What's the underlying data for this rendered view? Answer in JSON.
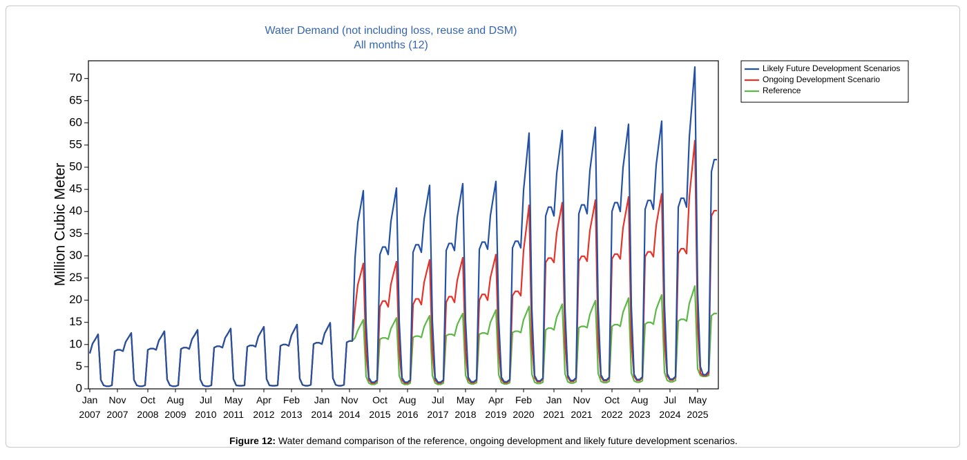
{
  "chart_data": {
    "type": "line",
    "title": "Water Demand (not including loss, reuse and DSM)",
    "subtitle": "All months (12)",
    "y_label": "Million Cubic Meter",
    "caption_label": "Figure 12:",
    "caption": "Water demand comparison of the reference, ongoing development and likely future development scenarios.",
    "legend": "right",
    "grid": false,
    "ylim": [
      0,
      74
    ],
    "yticks": [
      0,
      5,
      10,
      15,
      20,
      25,
      30,
      35,
      40,
      45,
      50,
      55,
      60,
      65,
      70
    ],
    "categories": [
      "Jan 2007",
      null,
      null,
      null,
      null,
      null,
      null,
      null,
      null,
      null,
      "Nov 2007",
      null,
      null,
      null,
      null,
      null,
      null,
      null,
      null,
      null,
      null,
      "Oct 2008",
      null,
      null,
      null,
      null,
      null,
      null,
      null,
      null,
      null,
      "Aug 2009",
      null,
      null,
      null,
      null,
      null,
      null,
      null,
      null,
      null,
      null,
      "Jul 2010",
      null,
      null,
      null,
      null,
      null,
      null,
      null,
      null,
      null,
      "May 2011",
      null,
      null,
      null,
      null,
      null,
      null,
      null,
      null,
      null,
      null,
      "Apr 2012",
      null,
      null,
      null,
      null,
      null,
      null,
      null,
      null,
      null,
      "Feb 2013",
      null,
      null,
      null,
      null,
      null,
      null,
      null,
      null,
      null,
      null,
      "Jan 2014",
      null,
      null,
      null,
      null,
      null,
      null,
      null,
      null,
      null,
      "Nov 2014",
      null,
      null,
      null,
      null,
      null,
      null,
      null,
      null,
      null,
      null,
      "Oct 2015",
      null,
      null,
      null,
      null,
      null,
      null,
      null,
      null,
      null,
      "Aug 2016",
      null,
      null,
      null,
      null,
      null,
      null,
      null,
      null,
      null,
      null,
      "Jul 2017",
      null,
      null,
      null,
      null,
      null,
      null,
      null,
      null,
      null,
      "May 2018",
      null,
      null,
      null,
      null,
      null,
      null,
      null,
      null,
      null,
      null,
      "Apr 2019",
      null,
      null,
      null,
      null,
      null,
      null,
      null,
      null,
      null,
      "Feb 2020",
      null,
      null,
      null,
      null,
      null,
      null,
      null,
      null,
      null,
      null,
      "Jan 2021",
      null,
      null,
      null,
      null,
      null,
      null,
      null,
      null,
      null,
      "Nov 2021",
      null,
      null,
      null,
      null,
      null,
      null,
      null,
      null,
      null,
      null,
      "Oct 2022",
      null,
      null,
      null,
      null,
      null,
      null,
      null,
      null,
      null,
      "Aug 2023",
      null,
      null,
      null,
      null,
      null,
      null,
      null,
      null,
      null,
      null,
      "Jul 2024",
      null,
      null,
      null,
      null,
      null,
      null,
      null,
      null,
      null,
      "May 2025",
      null,
      null,
      null,
      null,
      null,
      null,
      null
    ],
    "series": [
      {
        "name": "Likely Future Development Scenarios",
        "color": "#2351a3",
        "values": [
          8.0,
          10.2,
          11.2,
          12.3,
          2.0,
          0.8,
          0.6,
          0.6,
          0.8,
          8.5,
          8.8,
          8.8,
          8.5,
          10.6,
          11.6,
          12.6,
          2.0,
          0.8,
          0.6,
          0.6,
          0.8,
          8.8,
          9.1,
          9.1,
          8.8,
          10.9,
          11.9,
          13.0,
          2.1,
          0.8,
          0.6,
          0.6,
          0.8,
          9.0,
          9.3,
          9.3,
          9.0,
          11.2,
          12.2,
          13.3,
          2.1,
          0.8,
          0.6,
          0.6,
          0.8,
          9.3,
          9.6,
          9.6,
          9.3,
          11.5,
          12.5,
          13.6,
          2.2,
          0.8,
          0.7,
          0.7,
          0.8,
          9.5,
          9.8,
          9.8,
          9.5,
          11.8,
          12.9,
          14.0,
          2.2,
          0.8,
          0.7,
          0.7,
          0.8,
          9.7,
          10.0,
          10.0,
          9.7,
          12.1,
          13.3,
          14.5,
          2.3,
          0.9,
          0.7,
          0.7,
          0.9,
          10.1,
          10.4,
          10.4,
          10.1,
          12.5,
          13.7,
          14.9,
          2.4,
          0.9,
          0.7,
          0.7,
          0.9,
          10.5,
          10.8,
          10.8,
          29.5,
          37.5,
          41.0,
          44.7,
          15.0,
          2.5,
          1.5,
          1.5,
          2.0,
          30.3,
          32.0,
          32.0,
          30.3,
          37.8,
          41.5,
          45.3,
          15.2,
          2.5,
          1.5,
          1.5,
          2.0,
          30.8,
          32.5,
          32.5,
          30.8,
          38.3,
          42.1,
          45.9,
          15.4,
          2.5,
          1.5,
          1.5,
          2.0,
          31.2,
          32.8,
          32.8,
          31.2,
          38.7,
          42.5,
          46.3,
          15.5,
          2.6,
          1.6,
          1.6,
          2.1,
          31.5,
          33.1,
          33.1,
          31.5,
          39.1,
          43.0,
          46.8,
          15.7,
          2.6,
          1.6,
          1.6,
          2.1,
          31.8,
          33.3,
          33.3,
          31.8,
          44.8,
          51.2,
          57.7,
          18.0,
          3.0,
          1.8,
          1.8,
          2.4,
          39.0,
          41.0,
          41.0,
          39.0,
          48.6,
          53.5,
          58.3,
          18.2,
          3.1,
          1.9,
          1.9,
          2.5,
          39.5,
          41.5,
          41.5,
          39.5,
          49.2,
          54.1,
          59.0,
          18.5,
          3.2,
          2.0,
          2.0,
          2.6,
          40.0,
          42.0,
          42.0,
          40.0,
          49.9,
          54.8,
          59.7,
          18.7,
          3.3,
          2.1,
          2.1,
          2.7,
          40.5,
          42.5,
          42.5,
          40.5,
          50.5,
          55.5,
          60.4,
          19.0,
          3.4,
          2.2,
          2.2,
          2.8,
          41.0,
          43.0,
          43.0,
          41.0,
          56.8,
          64.7,
          72.6,
          22.0,
          5.0,
          3.2,
          3.2,
          4.0,
          49.0,
          51.7,
          51.7
        ]
      },
      {
        "name": "Ongoing Development Scenario",
        "color": "#e5332a",
        "values": [
          8.0,
          10.2,
          11.2,
          12.3,
          2.0,
          0.8,
          0.6,
          0.6,
          0.8,
          8.5,
          8.8,
          8.8,
          8.5,
          10.6,
          11.6,
          12.6,
          2.0,
          0.8,
          0.6,
          0.6,
          0.8,
          8.8,
          9.1,
          9.1,
          8.8,
          10.9,
          11.9,
          13.0,
          2.1,
          0.8,
          0.6,
          0.6,
          0.8,
          9.0,
          9.3,
          9.3,
          9.0,
          11.2,
          12.2,
          13.3,
          2.1,
          0.8,
          0.6,
          0.6,
          0.8,
          9.3,
          9.6,
          9.6,
          9.3,
          11.5,
          12.5,
          13.6,
          2.2,
          0.8,
          0.7,
          0.7,
          0.8,
          9.5,
          9.8,
          9.8,
          9.5,
          11.8,
          12.9,
          14.0,
          2.2,
          0.8,
          0.7,
          0.7,
          0.8,
          9.7,
          10.0,
          10.0,
          9.7,
          12.1,
          13.3,
          14.5,
          2.3,
          0.9,
          0.7,
          0.7,
          0.9,
          10.1,
          10.4,
          10.4,
          10.1,
          12.5,
          13.7,
          14.9,
          2.4,
          0.9,
          0.7,
          0.7,
          0.9,
          10.5,
          10.8,
          10.8,
          18.0,
          23.5,
          25.8,
          28.3,
          8.0,
          2.0,
          1.3,
          1.3,
          1.8,
          18.5,
          19.8,
          19.8,
          18.5,
          23.6,
          26.2,
          28.7,
          8.2,
          2.0,
          1.3,
          1.3,
          1.8,
          19.0,
          20.3,
          20.3,
          19.0,
          24.0,
          26.6,
          29.1,
          8.3,
          2.0,
          1.3,
          1.3,
          1.8,
          19.5,
          20.8,
          20.8,
          19.5,
          24.5,
          27.1,
          29.6,
          8.4,
          2.1,
          1.4,
          1.4,
          1.9,
          20.0,
          21.3,
          21.3,
          20.0,
          25.1,
          27.7,
          30.3,
          8.6,
          2.1,
          1.4,
          1.4,
          1.9,
          21.0,
          22.0,
          22.0,
          21.0,
          31.2,
          36.3,
          41.4,
          10.0,
          2.5,
          1.6,
          1.6,
          2.2,
          28.5,
          29.5,
          29.5,
          28.5,
          35.2,
          38.6,
          42.0,
          10.2,
          2.6,
          1.7,
          1.7,
          2.3,
          28.8,
          29.9,
          29.9,
          28.8,
          35.7,
          39.1,
          42.6,
          10.4,
          2.7,
          1.8,
          1.8,
          2.4,
          29.3,
          30.4,
          30.4,
          29.3,
          36.3,
          39.8,
          43.3,
          10.6,
          2.8,
          1.9,
          1.9,
          2.5,
          29.8,
          30.9,
          30.9,
          29.8,
          36.9,
          40.5,
          44.0,
          10.8,
          2.9,
          2.0,
          2.0,
          2.6,
          30.5,
          31.6,
          31.6,
          30.5,
          43.3,
          49.6,
          56.0,
          14.0,
          3.5,
          3.0,
          3.0,
          3.5,
          39.0,
          40.2,
          40.2
        ]
      },
      {
        "name": "Reference",
        "color": "#5cb846",
        "values": [
          8.0,
          10.2,
          11.2,
          12.3,
          2.0,
          0.8,
          0.6,
          0.6,
          0.8,
          8.5,
          8.8,
          8.8,
          8.5,
          10.6,
          11.6,
          12.6,
          2.0,
          0.8,
          0.6,
          0.6,
          0.8,
          8.8,
          9.1,
          9.1,
          8.8,
          10.9,
          11.9,
          13.0,
          2.1,
          0.8,
          0.6,
          0.6,
          0.8,
          9.0,
          9.3,
          9.3,
          9.0,
          11.2,
          12.2,
          13.3,
          2.1,
          0.8,
          0.6,
          0.6,
          0.8,
          9.3,
          9.6,
          9.6,
          9.3,
          11.5,
          12.5,
          13.6,
          2.2,
          0.8,
          0.7,
          0.7,
          0.8,
          9.5,
          9.8,
          9.8,
          9.5,
          11.8,
          12.9,
          14.0,
          2.2,
          0.8,
          0.7,
          0.7,
          0.8,
          9.7,
          10.0,
          10.0,
          9.7,
          12.1,
          13.3,
          14.5,
          2.3,
          0.9,
          0.7,
          0.7,
          0.9,
          10.1,
          10.4,
          10.4,
          10.1,
          12.5,
          13.7,
          14.9,
          2.4,
          0.9,
          0.7,
          0.7,
          0.9,
          10.5,
          10.8,
          10.8,
          11.5,
          13.2,
          14.4,
          15.6,
          2.8,
          1.3,
          1.0,
          1.0,
          1.3,
          11.2,
          11.5,
          11.5,
          11.2,
          13.6,
          14.8,
          16.0,
          2.9,
          1.3,
          1.0,
          1.0,
          1.3,
          11.6,
          11.9,
          11.9,
          11.6,
          14.0,
          15.3,
          16.5,
          3.0,
          1.3,
          1.0,
          1.0,
          1.3,
          12.0,
          12.3,
          12.3,
          12.0,
          14.5,
          15.8,
          17.0,
          3.1,
          1.4,
          1.1,
          1.1,
          1.4,
          12.3,
          12.6,
          12.6,
          12.3,
          15.0,
          16.4,
          17.8,
          3.2,
          1.4,
          1.1,
          1.1,
          1.4,
          12.7,
          13.0,
          13.0,
          12.7,
          15.6,
          17.1,
          18.6,
          3.3,
          1.5,
          1.2,
          1.2,
          1.5,
          13.3,
          13.7,
          13.7,
          13.3,
          16.2,
          17.6,
          19.1,
          3.4,
          1.6,
          1.3,
          1.3,
          1.6,
          13.8,
          14.1,
          14.1,
          13.8,
          16.8,
          18.4,
          19.9,
          3.5,
          1.7,
          1.4,
          1.4,
          1.7,
          14.1,
          14.5,
          14.5,
          14.1,
          17.3,
          18.9,
          20.5,
          3.6,
          1.8,
          1.5,
          1.5,
          1.8,
          14.6,
          15.0,
          15.0,
          14.6,
          17.9,
          19.6,
          21.2,
          3.7,
          1.9,
          1.6,
          1.6,
          1.9,
          15.3,
          15.7,
          15.7,
          15.3,
          19.3,
          21.2,
          23.2,
          4.5,
          3.0,
          2.8,
          2.8,
          3.0,
          16.5,
          17.0,
          17.0
        ]
      }
    ]
  }
}
